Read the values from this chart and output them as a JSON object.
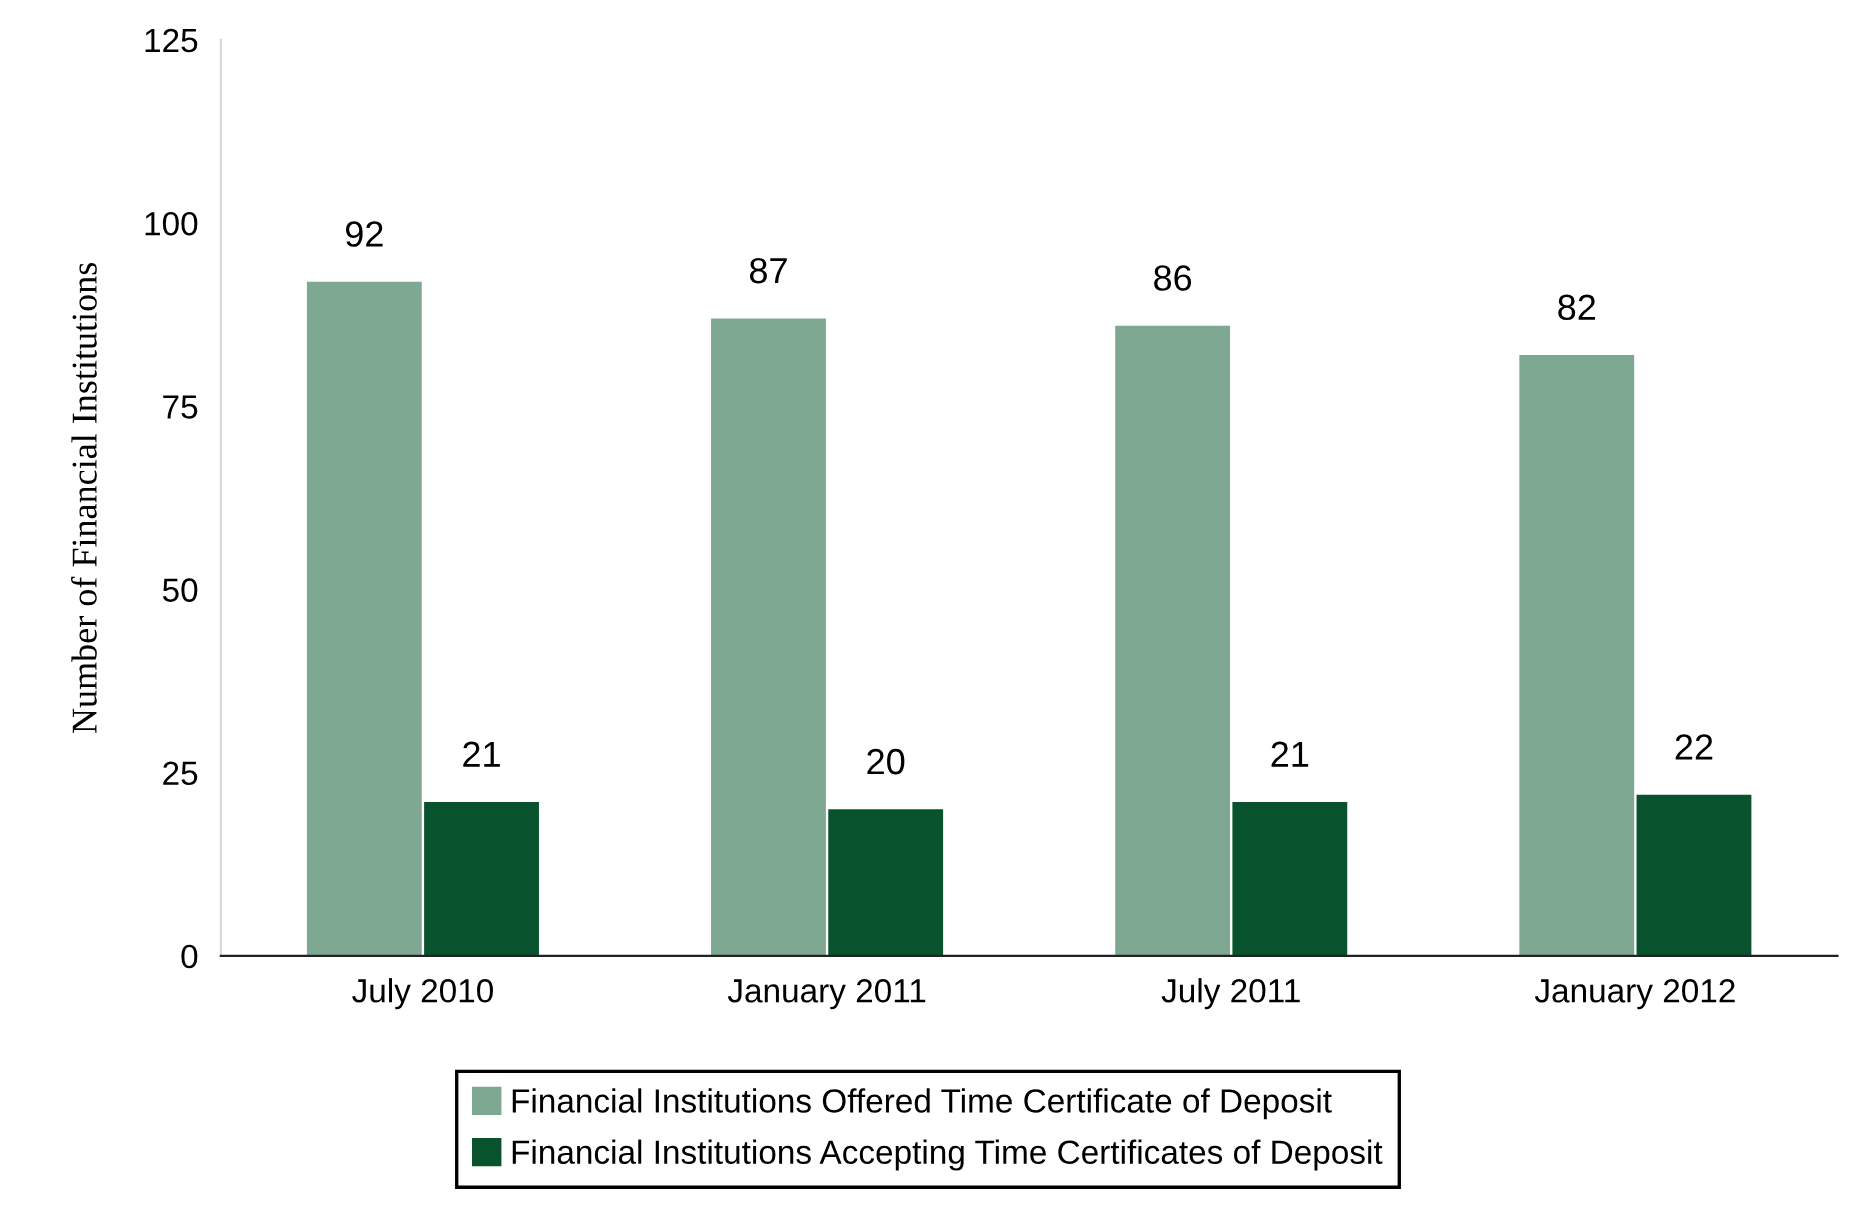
{
  "chart_data": {
    "type": "bar",
    "ylabel": "Number of Financial Institutions",
    "categories": [
      "July 2010",
      "January 2011",
      "July 2011",
      "January 2012"
    ],
    "series": [
      {
        "name": "Financial Institutions Offered Time Certificate of Deposit",
        "color": "#7fa892",
        "values": [
          92,
          87,
          86,
          82
        ]
      },
      {
        "name": "Financial Institutions Accepting Time Certificates of Deposit",
        "color": "#08532e",
        "values": [
          21,
          20,
          21,
          22
        ]
      }
    ],
    "ylim": [
      0,
      125
    ],
    "yticks": [
      0,
      25,
      50,
      75,
      100,
      125
    ],
    "grid": false,
    "legend": "bottom",
    "data_labels": true
  }
}
